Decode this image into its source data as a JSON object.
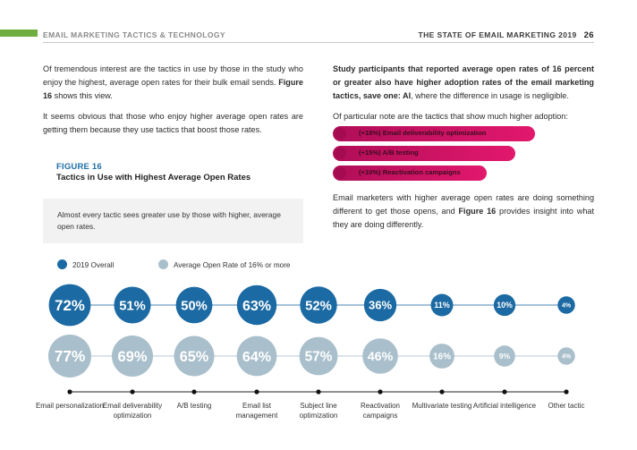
{
  "header": {
    "left": "EMAIL MARKETING TACTICS & TECHNOLOGY",
    "right": "THE STATE OF EMAIL MARKETING 2019",
    "page": "26"
  },
  "left_col": {
    "p1_a": "Of tremendous interest are the tactics in use by those in the study who enjoy the highest, average open rates for their bulk email sends. ",
    "p1_b": "Figure 16",
    "p1_c": " shows this view.",
    "p2": "It seems obvious that those who enjoy higher average open rates are getting them because they use tactics that boost those rates."
  },
  "figure": {
    "label": "FIGURE 16",
    "title": "Tactics in Use with Highest Average Open Rates",
    "callout": "Almost every tactic sees greater use by those with higher, average open rates."
  },
  "right_col": {
    "p1_a": "Study participants that reported average open rates of 16 percent or greater also have higher adoption rates of the email marketing tactics, save one: AI",
    "p1_b": ", where the difference in usage is negligible.",
    "p2": "Of particular note are the tactics that show much higher adoption:",
    "p3_a": "Email marketers with higher average open rates are doing something different to get those opens, and ",
    "p3_b": "Figure 16",
    "p3_c": " provides insight into what they are doing differently."
  },
  "highlights": [
    "(+18%) Email deliverability optimization",
    "(+15%) A/B testing",
    "(+10%) Reactivation campaigns"
  ],
  "colors": {
    "overall": "#1c6aa3",
    "high": "#a9bfcb",
    "accent": "#e2186d",
    "green": "#6fae3f"
  },
  "chart_data": {
    "type": "bubble",
    "legend": [
      "2019 Overall",
      "Average Open Rate of 16% or more"
    ],
    "legend_position": "top-left",
    "categories": [
      "Email personalization",
      "Email deliverability optimization",
      "A/B testing",
      "Email list management",
      "Subject line optimization",
      "Reactivation campaigns",
      "Multivariate testing",
      "Artificial intelligence",
      "Other tactic"
    ],
    "series": [
      {
        "name": "2019 Overall",
        "values": [
          72,
          51,
          50,
          63,
          52,
          36,
          11,
          10,
          4
        ]
      },
      {
        "name": "Average Open Rate of 16% or more",
        "values": [
          77,
          69,
          65,
          64,
          57,
          46,
          16,
          9,
          4
        ]
      }
    ]
  }
}
